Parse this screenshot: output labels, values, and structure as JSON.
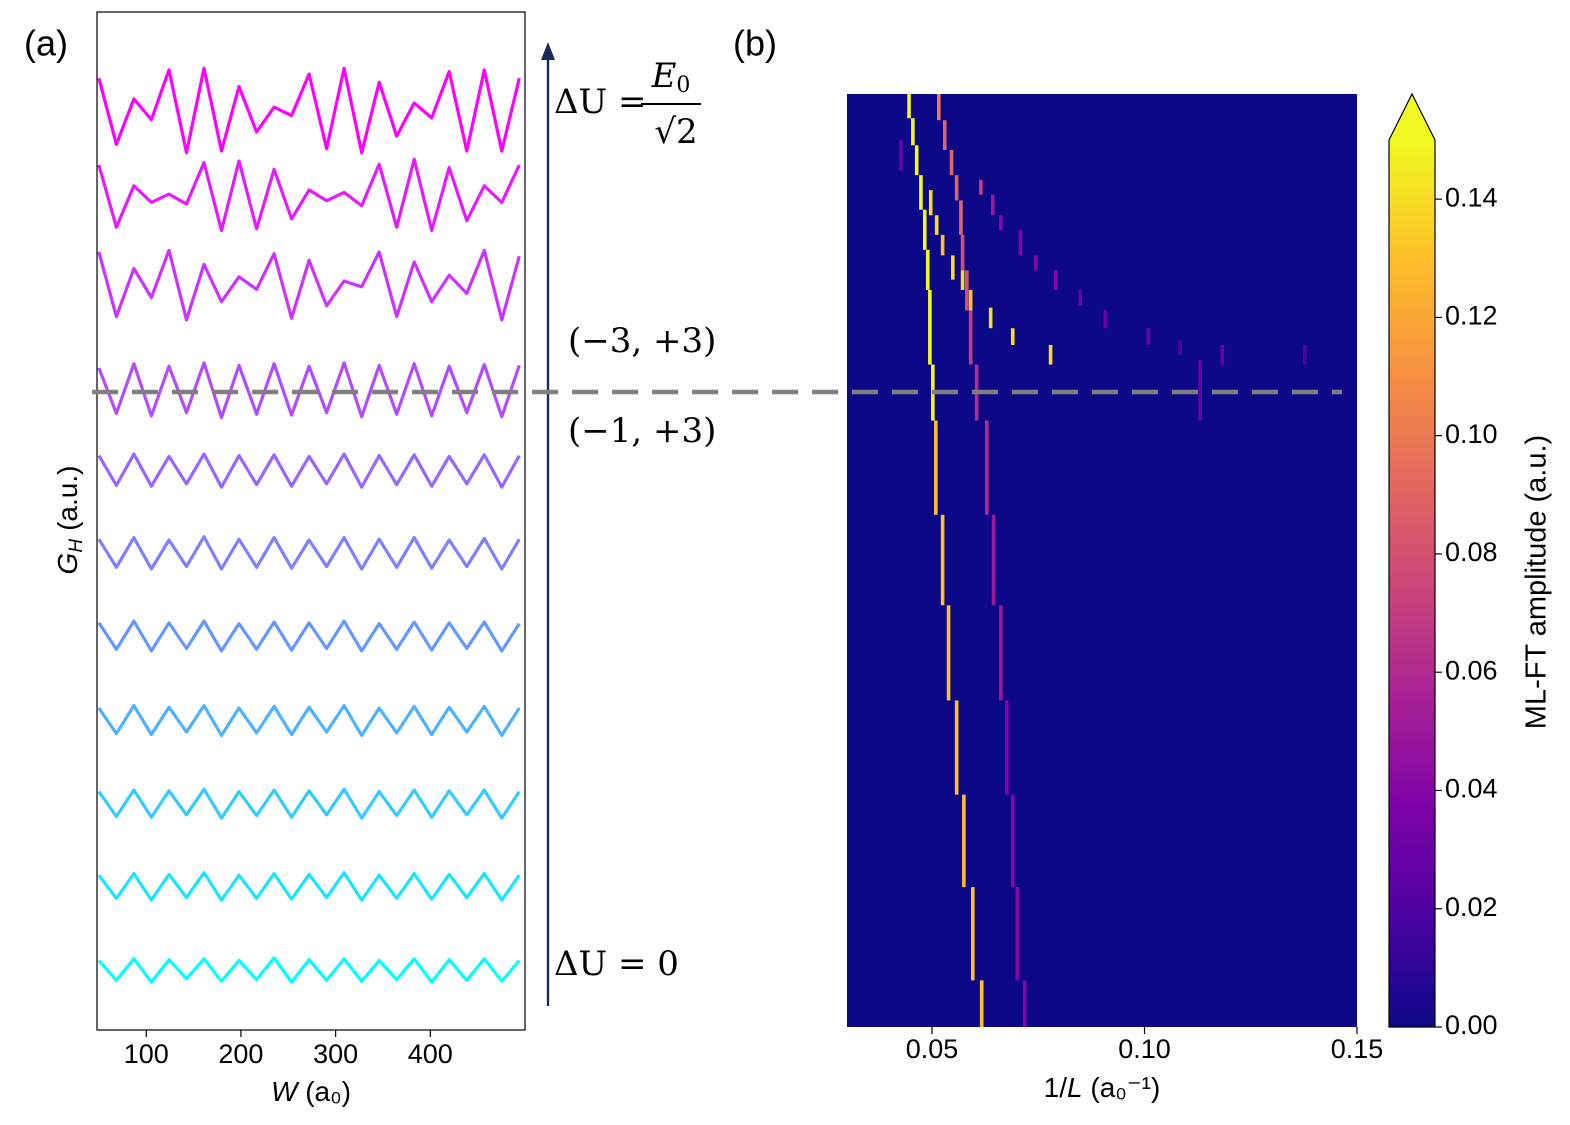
{
  "chart_data": [
    {
      "type": "line",
      "label": "(a)",
      "x_label": {
        "symbol": "W",
        "unit": "(a₀)"
      },
      "y_label": {
        "symbol": "G",
        "sub": "H",
        "unit": "(a.u.)"
      },
      "xlim": [
        48,
        500
      ],
      "xticks": [
        100,
        200,
        300,
        400
      ],
      "ylim": [
        0,
        12.3
      ],
      "x": [
        50,
        68.5,
        87,
        105.5,
        124,
        142.5,
        161,
        179.5,
        198,
        216.5,
        235,
        253.5,
        272,
        290.5,
        309,
        327.5,
        346,
        364.5,
        383,
        401.5,
        420,
        438.5,
        457,
        475.5,
        494
      ],
      "series": [
        {
          "color": "#00ffff",
          "values": [
            0.84,
            0.6,
            0.86,
            0.58,
            0.85,
            0.62,
            0.86,
            0.59,
            0.84,
            0.61,
            0.87,
            0.58,
            0.85,
            0.6,
            0.86,
            0.59,
            0.84,
            0.61,
            0.86,
            0.58,
            0.85,
            0.6,
            0.86,
            0.59,
            0.84
          ]
        },
        {
          "color": "#1ae5ff",
          "values": [
            1.87,
            1.59,
            1.89,
            1.57,
            1.88,
            1.6,
            1.9,
            1.57,
            1.87,
            1.59,
            1.89,
            1.58,
            1.88,
            1.6,
            1.9,
            1.57,
            1.87,
            1.59,
            1.89,
            1.58,
            1.88,
            1.6,
            1.89,
            1.57,
            1.87
          ]
        },
        {
          "color": "#33ccff",
          "values": [
            2.88,
            2.58,
            2.9,
            2.57,
            2.89,
            2.6,
            2.91,
            2.56,
            2.88,
            2.59,
            2.9,
            2.57,
            2.89,
            2.6,
            2.91,
            2.56,
            2.88,
            2.59,
            2.9,
            2.57,
            2.89,
            2.6,
            2.9,
            2.56,
            2.88
          ]
        },
        {
          "color": "#4db2ff",
          "values": [
            3.89,
            3.58,
            3.92,
            3.57,
            3.9,
            3.6,
            3.92,
            3.56,
            3.89,
            3.59,
            3.91,
            3.57,
            3.9,
            3.6,
            3.92,
            3.56,
            3.89,
            3.59,
            3.91,
            3.57,
            3.9,
            3.6,
            3.91,
            3.56,
            3.89
          ]
        },
        {
          "color": "#6699ff",
          "values": [
            4.92,
            4.6,
            4.94,
            4.58,
            4.92,
            4.61,
            4.94,
            4.58,
            4.91,
            4.6,
            4.93,
            4.59,
            4.92,
            4.61,
            4.94,
            4.58,
            4.91,
            4.6,
            4.93,
            4.59,
            4.92,
            4.61,
            4.93,
            4.58,
            4.91
          ]
        },
        {
          "color": "#807fff",
          "values": [
            5.93,
            5.59,
            5.95,
            5.57,
            5.92,
            5.6,
            5.96,
            5.57,
            5.93,
            5.59,
            5.95,
            5.58,
            5.92,
            5.6,
            5.95,
            5.57,
            5.93,
            5.59,
            5.95,
            5.58,
            5.92,
            5.6,
            5.94,
            5.57,
            5.93
          ]
        },
        {
          "color": "#9966ff",
          "values": [
            6.94,
            6.58,
            6.96,
            6.57,
            6.93,
            6.6,
            6.96,
            6.56,
            6.94,
            6.59,
            6.95,
            6.57,
            6.93,
            6.6,
            6.96,
            6.56,
            6.94,
            6.59,
            6.95,
            6.57,
            6.93,
            6.6,
            6.95,
            6.56,
            6.94
          ]
        },
        {
          "color": "#b24dff",
          "values": [
            8.0,
            7.45,
            8.05,
            7.42,
            8.02,
            7.46,
            8.06,
            7.4,
            8.03,
            7.44,
            8.05,
            7.43,
            8.02,
            7.46,
            8.06,
            7.41,
            8.03,
            7.44,
            8.05,
            7.42,
            8.02,
            7.46,
            8.04,
            7.41,
            8.03
          ]
        },
        {
          "color": "#cc33ff",
          "values": [
            9.4,
            8.62,
            9.2,
            8.85,
            9.42,
            8.58,
            9.25,
            8.8,
            9.1,
            8.95,
            9.38,
            8.6,
            9.3,
            8.75,
            9.05,
            8.98,
            9.4,
            8.62,
            9.28,
            8.8,
            9.12,
            8.9,
            9.42,
            8.58,
            9.35
          ]
        },
        {
          "color": "#e61aff",
          "values": [
            10.45,
            9.7,
            10.2,
            10.0,
            10.1,
            9.98,
            10.48,
            9.66,
            10.5,
            9.68,
            10.4,
            9.8,
            10.15,
            10.02,
            10.12,
            9.96,
            10.46,
            9.7,
            10.52,
            9.66,
            10.42,
            9.78,
            10.2,
            10.0,
            10.45
          ]
        },
        {
          "color": "#ff00ff",
          "values": [
            11.5,
            10.7,
            11.25,
            11.0,
            11.6,
            10.6,
            11.62,
            10.62,
            11.4,
            10.85,
            11.15,
            11.05,
            11.55,
            10.65,
            11.62,
            10.6,
            11.45,
            10.8,
            11.2,
            11.02,
            11.58,
            10.62,
            11.6,
            10.62,
            11.5
          ]
        }
      ],
      "annotations": {
        "top": {
          "lhs": "ΔU =",
          "numerator": "E",
          "numerator_sub": "0",
          "denominator": "√2"
        },
        "upper_pair": "(−3, +3)",
        "lower_pair": "(−1, +3)",
        "bottom": "ΔU = 0"
      }
    },
    {
      "type": "heatmap",
      "label": "(b)",
      "colormap": "plasma",
      "x_label": {
        "prefix": "1/",
        "symbol": "L",
        "unit": "(a₀⁻¹)"
      },
      "xlim": [
        0.03,
        0.15
      ],
      "xticks": [
        0.05,
        {
          "value": 0.1,
          "label": "0.10"
        },
        0.15
      ],
      "ylim": [
        0,
        1
      ],
      "clim": [
        0,
        0.15
      ],
      "colorbar_extend": "max",
      "colorbar_label": "ML-FT amplitude (a.u.)",
      "colorbar_ticks": [
        {
          "value": 0,
          "label": "0.00"
        },
        0.02,
        0.04,
        0.06,
        0.08,
        {
          "value": 0.1,
          "label": "0.10"
        },
        0.12,
        0.14
      ],
      "cells": [
        {
          "x": 0.0446,
          "y": [
            0.974,
            1.0
          ],
          "v": 0.15
        },
        {
          "x": 0.0455,
          "y": [
            0.945,
            0.974
          ],
          "v": 0.15
        },
        {
          "x": 0.0464,
          "y": [
            0.913,
            0.945
          ],
          "v": 0.15
        },
        {
          "x": 0.0474,
          "y": [
            0.876,
            0.913
          ],
          "v": 0.15
        },
        {
          "x": 0.0483,
          "y": [
            0.833,
            0.876
          ],
          "v": 0.15
        },
        {
          "x": 0.049,
          "y": [
            0.79,
            0.833
          ],
          "v": 0.15
        },
        {
          "x": 0.0495,
          "y": [
            0.71,
            0.79
          ],
          "v": 0.15
        },
        {
          "x": 0.0502,
          "y": [
            0.65,
            0.71
          ],
          "v": 0.15
        },
        {
          "x": 0.0509,
          "y": [
            0.549,
            0.65
          ],
          "v": 0.13
        },
        {
          "x": 0.0525,
          "y": [
            0.452,
            0.549
          ],
          "v": 0.13
        },
        {
          "x": 0.0539,
          "y": [
            0.35,
            0.452
          ],
          "v": 0.13
        },
        {
          "x": 0.0558,
          "y": [
            0.249,
            0.35
          ],
          "v": 0.13
        },
        {
          "x": 0.0575,
          "y": [
            0.15,
            0.249
          ],
          "v": 0.13
        },
        {
          "x": 0.0596,
          "y": [
            0.05,
            0.15
          ],
          "v": 0.13
        },
        {
          "x": 0.0617,
          "y": [
            0,
            0.05
          ],
          "v": 0.13
        },
        {
          "x": 0.0516,
          "y": [
            0.972,
            1.0
          ],
          "v": 0.1
        },
        {
          "x": 0.053,
          "y": [
            0.94,
            0.972
          ],
          "v": 0.09
        },
        {
          "x": 0.0546,
          "y": [
            0.913,
            0.94
          ],
          "v": 0.09
        },
        {
          "x": 0.0558,
          "y": [
            0.886,
            0.913
          ],
          "v": 0.09
        },
        {
          "x": 0.0568,
          "y": [
            0.849,
            0.886
          ],
          "v": 0.09
        },
        {
          "x": 0.0572,
          "y": [
            0.811,
            0.849
          ],
          "v": 0.08
        },
        {
          "x": 0.0582,
          "y": [
            0.768,
            0.811
          ],
          "v": 0.08
        },
        {
          "x": 0.0591,
          "y": [
            0.71,
            0.768
          ],
          "v": 0.07
        },
        {
          "x": 0.0605,
          "y": [
            0.65,
            0.71
          ],
          "v": 0.06
        },
        {
          "x": 0.0629,
          "y": [
            0.549,
            0.65
          ],
          "v": 0.06
        },
        {
          "x": 0.0645,
          "y": [
            0.452,
            0.549
          ],
          "v": 0.05
        },
        {
          "x": 0.0662,
          "y": [
            0.35,
            0.452
          ],
          "v": 0.05
        },
        {
          "x": 0.0676,
          "y": [
            0.249,
            0.35
          ],
          "v": 0.04
        },
        {
          "x": 0.069,
          "y": [
            0.15,
            0.249
          ],
          "v": 0.04
        },
        {
          "x": 0.0701,
          "y": [
            0.05,
            0.15
          ],
          "v": 0.04
        },
        {
          "x": 0.0718,
          "y": [
            0,
            0.05
          ],
          "v": 0.04
        },
        {
          "x": 0.0497,
          "y": [
            0.87,
            0.897
          ],
          "v": 0.14
        },
        {
          "x": 0.0511,
          "y": [
            0.849,
            0.87
          ],
          "v": 0.14
        },
        {
          "x": 0.0525,
          "y": [
            0.827,
            0.849
          ],
          "v": 0.13
        },
        {
          "x": 0.0549,
          "y": [
            0.801,
            0.827
          ],
          "v": 0.14
        },
        {
          "x": 0.0572,
          "y": [
            0.79,
            0.811
          ],
          "v": 0.14
        },
        {
          "x": 0.0591,
          "y": [
            0.768,
            0.79
          ],
          "v": 0.13
        },
        {
          "x": 0.0638,
          "y": [
            0.749,
            0.771
          ],
          "v": 0.14
        },
        {
          "x": 0.069,
          "y": [
            0.731,
            0.749
          ],
          "v": 0.14
        },
        {
          "x": 0.0779,
          "y": [
            0.71,
            0.731
          ],
          "v": 0.14
        },
        {
          "x": 0.0615,
          "y": [
            0.892,
            0.908
          ],
          "v": 0.07
        },
        {
          "x": 0.0643,
          "y": [
            0.87,
            0.892
          ],
          "v": 0.05
        },
        {
          "x": 0.0662,
          "y": [
            0.854,
            0.87
          ],
          "v": 0.04
        },
        {
          "x": 0.0708,
          "y": [
            0.827,
            0.854
          ],
          "v": 0.04
        },
        {
          "x": 0.0744,
          "y": [
            0.811,
            0.827
          ],
          "v": 0.04
        },
        {
          "x": 0.0791,
          "y": [
            0.79,
            0.811
          ],
          "v": 0.04
        },
        {
          "x": 0.0849,
          "y": [
            0.774,
            0.79
          ],
          "v": 0.03
        },
        {
          "x": 0.0908,
          "y": [
            0.749,
            0.768
          ],
          "v": 0.03
        },
        {
          "x": 0.1009,
          "y": [
            0.731,
            0.749
          ],
          "v": 0.03
        },
        {
          "x": 0.1084,
          "y": [
            0.72,
            0.736
          ],
          "v": 0.02
        },
        {
          "x": 0.1183,
          "y": [
            0.71,
            0.731
          ],
          "v": 0.03
        },
        {
          "x": 0.1131,
          "y": [
            0.65,
            0.715
          ],
          "v": 0.03
        },
        {
          "x": 0.1377,
          "y": [
            0.71,
            0.731
          ],
          "v": 0.02
        },
        {
          "x": 0.0427,
          "y": [
            0.918,
            0.951
          ],
          "v": 0.03
        }
      ]
    }
  ]
}
